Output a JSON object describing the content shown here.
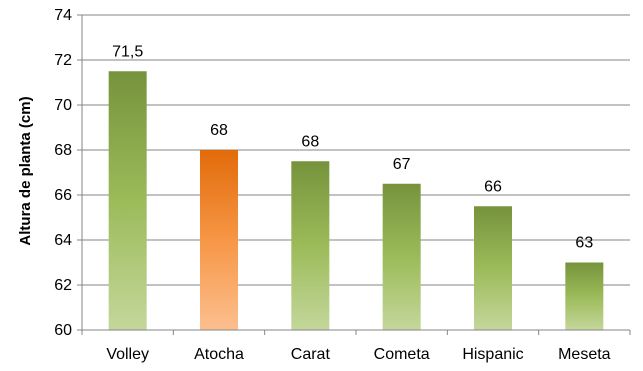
{
  "chart_data": {
    "type": "bar",
    "title": "",
    "xlabel": "",
    "ylabel": "Altura de planta (cm)",
    "ylim": [
      60,
      74
    ],
    "yticks": [
      60,
      62,
      64,
      66,
      68,
      70,
      72,
      74
    ],
    "ytick_labels": [
      "60",
      "62",
      "64",
      "66",
      "68",
      "70",
      "72",
      "74"
    ],
    "grid": "horizontal",
    "categories": [
      "Volley",
      "Atocha",
      "Carat",
      "Cometa",
      "Hispanic",
      "Meseta"
    ],
    "values": [
      71.5,
      68,
      67.5,
      66.5,
      65.5,
      63
    ],
    "data_labels": [
      "71,5",
      "68",
      "68",
      "67",
      "66",
      "63"
    ],
    "highlight_category": "Atocha",
    "colors": {
      "bar_top": "#76933c",
      "bar_mid": "#9bbb59",
      "bar_bottom": "#c4d79b",
      "highlight_top": "#e26b0a",
      "highlight_mid": "#f79646",
      "highlight_bottom": "#fcbf8f",
      "grid": "#868686",
      "axis": "#868686"
    }
  }
}
